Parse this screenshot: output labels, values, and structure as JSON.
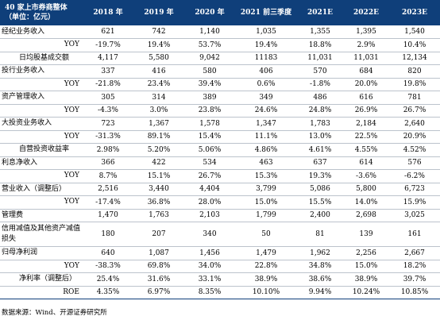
{
  "header": {
    "title_line1": "40 家上市券商整体",
    "title_line2": "（单位：亿元）",
    "columns": [
      "2018 年",
      "2019 年",
      "2020 年",
      "2021 前三季度",
      "2021E",
      "2022E",
      "2023E"
    ]
  },
  "rows": [
    {
      "label": "经纪业务收入",
      "values": [
        "621",
        "742",
        "1,140",
        "1,035",
        "1,355",
        "1,395",
        "1,540"
      ]
    },
    {
      "label": "YOY",
      "values": [
        "-19.7%",
        "19.4%",
        "53.7%",
        "19.4%",
        "18.8%",
        "2.9%",
        "10.4%"
      ]
    },
    {
      "label": "日均股基成交额",
      "values": [
        "4,117",
        "5,580",
        "9,042",
        "11183",
        "11,031",
        "11,031",
        "12,134"
      ]
    },
    {
      "label": "投行业务收入",
      "values": [
        "337",
        "416",
        "580",
        "406",
        "570",
        "684",
        "820"
      ]
    },
    {
      "label": "YOY",
      "values": [
        "-21.8%",
        "23.4%",
        "39.4%",
        "0.6%",
        "-1.8%",
        "20.0%",
        "19.8%"
      ]
    },
    {
      "label": "资产管理收入",
      "values": [
        "305",
        "314",
        "389",
        "349",
        "486",
        "616",
        "781"
      ]
    },
    {
      "label": "YOY",
      "values": [
        "-4.3%",
        "3.0%",
        "23.8%",
        "24.6%",
        "24.8%",
        "26.9%",
        "26.7%"
      ]
    },
    {
      "label": "大投资业务收入",
      "values": [
        "723",
        "1,367",
        "1,578",
        "1,347",
        "1,783",
        "2,184",
        "2,640"
      ]
    },
    {
      "label": "YOY",
      "values": [
        "-31.3%",
        "89.1%",
        "15.4%",
        "11.1%",
        "13.0%",
        "22.5%",
        "20.9%"
      ]
    },
    {
      "label": "自营投资收益率",
      "values": [
        "2.98%",
        "5.20%",
        "5.06%",
        "4.86%",
        "4.61%",
        "4.55%",
        "4.52%"
      ]
    },
    {
      "label": "利息净收入",
      "values": [
        "366",
        "422",
        "534",
        "463",
        "637",
        "614",
        "576"
      ]
    },
    {
      "label": "YOY",
      "values": [
        "8.7%",
        "15.1%",
        "26.7%",
        "15.3%",
        "19.3%",
        "-3.6%",
        "-6.2%"
      ]
    },
    {
      "label": "营业收入（调整后）",
      "values": [
        "2,516",
        "3,440",
        "4,404",
        "3,799",
        "5,086",
        "5,800",
        "6,723"
      ]
    },
    {
      "label": "YOY",
      "values": [
        "-17.4%",
        "36.8%",
        "28.0%",
        "15.0%",
        "15.5%",
        "14.0%",
        "15.9%"
      ]
    },
    {
      "label": "管理费",
      "values": [
        "1,470",
        "1,763",
        "2,103",
        "1,799",
        "2,400",
        "2,698",
        "3,025"
      ]
    },
    {
      "label": "信用减值及其他资产减值损失",
      "values": [
        "180",
        "207",
        "340",
        "50",
        "81",
        "139",
        "161"
      ]
    },
    {
      "label": "归母净利润",
      "values": [
        "640",
        "1,087",
        "1,456",
        "1,479",
        "1,962",
        "2,256",
        "2,667"
      ]
    },
    {
      "label": "YOY",
      "values": [
        "-38.3%",
        "69.8%",
        "34.0%",
        "22.8%",
        "34.8%",
        "15.0%",
        "18.2%"
      ]
    },
    {
      "label": "净利率（调整后）",
      "values": [
        "25.4%",
        "31.6%",
        "33.1%",
        "38.9%",
        "38.6%",
        "38.9%",
        "39.7%"
      ]
    },
    {
      "label": "ROE",
      "values": [
        "4.35%",
        "6.97%",
        "8.35%",
        "10.10%",
        "9.94%",
        "10.24%",
        "10.85%"
      ]
    }
  ],
  "source": "数据来源：Wind、开源证券研究所"
}
